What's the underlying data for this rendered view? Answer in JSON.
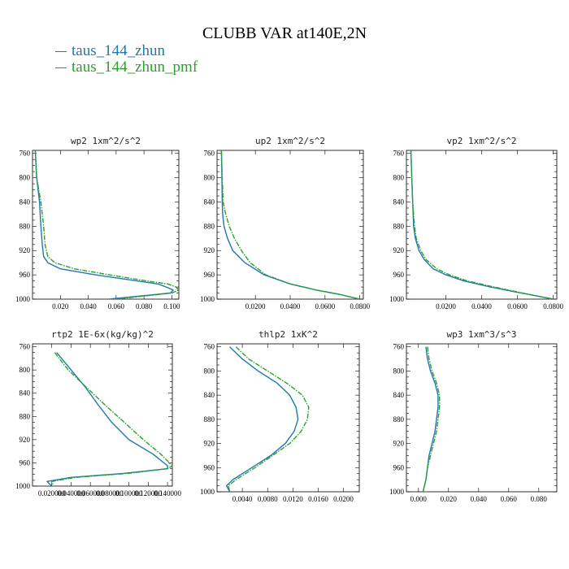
{
  "title": "CLUBB VAR at140E,2N",
  "legend": [
    {
      "name": "taus_144_zhun",
      "color": "#1f77b4"
    },
    {
      "name": "taus_144_zhun_pmf",
      "color": "#2ca02c"
    }
  ],
  "chart_data": [
    {
      "type": "line",
      "title": "wp2  1xm^2/s^2",
      "xlim": [
        0,
        0.105
      ],
      "ylim": [
        1000,
        755
      ],
      "xticks": [
        0.02,
        0.04,
        0.06,
        0.08,
        0.1
      ],
      "xticklabels": [
        "0.020",
        "0.040",
        "0.060",
        "0.080",
        "0.100"
      ],
      "yticks": [
        760,
        800,
        840,
        880,
        920,
        960,
        1000
      ],
      "series": [
        {
          "name": "taus_144_zhun",
          "y": [
            755,
            800,
            840,
            880,
            910,
            930,
            940,
            950,
            960,
            970,
            975,
            980,
            985,
            990,
            1000
          ],
          "x": [
            0.002,
            0.003,
            0.005,
            0.006,
            0.007,
            0.008,
            0.011,
            0.02,
            0.045,
            0.075,
            0.09,
            0.096,
            0.101,
            0.099,
            0.055
          ]
        },
        {
          "name": "taus_144_zhun_pmf",
          "y": [
            755,
            800,
            840,
            880,
            910,
            930,
            940,
            950,
            960,
            970,
            975,
            980,
            985,
            990,
            1000
          ],
          "x": [
            0.002,
            0.003,
            0.006,
            0.008,
            0.009,
            0.011,
            0.016,
            0.03,
            0.055,
            0.082,
            0.097,
            0.103,
            0.105,
            0.1,
            0.06
          ]
        }
      ]
    },
    {
      "type": "line",
      "title": "up2  1xm^2/s^2",
      "xlim": [
        -0.002,
        0.082
      ],
      "ylim": [
        1000,
        755
      ],
      "xticks": [
        0.02,
        0.04,
        0.06,
        0.08
      ],
      "xticklabels": [
        "0.0200",
        "0.0400",
        "0.0600",
        "0.0800"
      ],
      "yticks": [
        760,
        800,
        840,
        880,
        920,
        960,
        1000
      ],
      "series": [
        {
          "name": "taus_144_zhun",
          "y": [
            755,
            800,
            840,
            860,
            880,
            900,
            920,
            940,
            960,
            975,
            985,
            992,
            1000
          ],
          "x": [
            0.0005,
            0.0008,
            0.001,
            0.0012,
            0.002,
            0.004,
            0.007,
            0.014,
            0.025,
            0.04,
            0.055,
            0.068,
            0.08
          ]
        },
        {
          "name": "taus_144_zhun_pmf",
          "y": [
            755,
            800,
            840,
            860,
            880,
            900,
            920,
            940,
            960,
            975,
            985,
            992,
            1000
          ],
          "x": [
            0.0005,
            0.001,
            0.0015,
            0.003,
            0.005,
            0.008,
            0.012,
            0.017,
            0.026,
            0.04,
            0.055,
            0.068,
            0.08
          ]
        }
      ]
    },
    {
      "type": "line",
      "title": "vp2  1xm^2/s^2",
      "xlim": [
        -0.002,
        0.082
      ],
      "ylim": [
        1000,
        755
      ],
      "xticks": [
        0.02,
        0.04,
        0.06,
        0.08
      ],
      "xticklabels": [
        "0.0200",
        "0.0400",
        "0.0600",
        "0.0800"
      ],
      "yticks": [
        760,
        800,
        840,
        880,
        920,
        960,
        1000
      ],
      "series": [
        {
          "name": "taus_144_zhun",
          "y": [
            755,
            800,
            840,
            880,
            900,
            920,
            935,
            950,
            960,
            970,
            980,
            990,
            1000
          ],
          "x": [
            0.0005,
            0.001,
            0.0015,
            0.002,
            0.003,
            0.005,
            0.008,
            0.013,
            0.02,
            0.03,
            0.045,
            0.062,
            0.08
          ]
        },
        {
          "name": "taus_144_zhun_pmf",
          "y": [
            755,
            800,
            840,
            880,
            900,
            920,
            935,
            950,
            960,
            970,
            980,
            990,
            1000
          ],
          "x": [
            0.0005,
            0.001,
            0.0015,
            0.0025,
            0.0035,
            0.006,
            0.009,
            0.015,
            0.022,
            0.032,
            0.047,
            0.063,
            0.08
          ]
        }
      ]
    },
    {
      "type": "line",
      "title": "rtp2  1E-6x(kg/kg)^2",
      "xlim": [
        0,
        0.145
      ],
      "ylim": [
        1000,
        755
      ],
      "xticks": [
        0.02,
        0.04,
        0.06,
        0.08,
        0.1,
        0.12,
        0.14
      ],
      "xticklabels": [
        "0.020000",
        "0.040000",
        "0.060000",
        "0.080000",
        "0.100000",
        "0.120000",
        "0.140000"
      ],
      "yticks": [
        760,
        800,
        840,
        880,
        920,
        960,
        1000
      ],
      "series": [
        {
          "name": "taus_144_zhun",
          "y": [
            770,
            800,
            830,
            860,
            890,
            920,
            945,
            965,
            970,
            978,
            985,
            992,
            1000
          ],
          "x": [
            0.025,
            0.04,
            0.055,
            0.068,
            0.082,
            0.1,
            0.125,
            0.14,
            0.14,
            0.095,
            0.04,
            0.015,
            0.02
          ]
        },
        {
          "name": "taus_144_zhun_pmf",
          "y": [
            770,
            800,
            830,
            860,
            890,
            920,
            945,
            965,
            970,
            978,
            985,
            992,
            1000
          ],
          "x": [
            0.023,
            0.037,
            0.056,
            0.075,
            0.095,
            0.115,
            0.133,
            0.145,
            0.14,
            0.1,
            0.045,
            0.02,
            0.022
          ]
        }
      ]
    },
    {
      "type": "line",
      "title": "thlp2  1xK^2",
      "xlim": [
        0,
        0.0225
      ],
      "ylim": [
        1000,
        755
      ],
      "xticks": [
        0.004,
        0.008,
        0.012,
        0.016,
        0.02
      ],
      "xticklabels": [
        "0.0040",
        "0.0080",
        "0.0120",
        "0.0160",
        "0.0200"
      ],
      "yticks": [
        760,
        800,
        840,
        880,
        920,
        960,
        1000
      ],
      "series": [
        {
          "name": "taus_144_zhun",
          "y": [
            760,
            780,
            800,
            820,
            840,
            860,
            880,
            900,
            920,
            940,
            960,
            980,
            990,
            1000
          ],
          "x": [
            0.002,
            0.004,
            0.0065,
            0.0095,
            0.0115,
            0.0125,
            0.0128,
            0.0122,
            0.0108,
            0.0085,
            0.0055,
            0.0025,
            0.0015,
            0.002
          ]
        },
        {
          "name": "taus_144_zhun_pmf",
          "y": [
            760,
            780,
            800,
            820,
            840,
            860,
            880,
            900,
            920,
            940,
            960,
            980,
            990,
            1000
          ],
          "x": [
            0.003,
            0.005,
            0.008,
            0.011,
            0.0135,
            0.0145,
            0.0143,
            0.0133,
            0.0115,
            0.0088,
            0.006,
            0.003,
            0.0018,
            0.002
          ]
        }
      ]
    },
    {
      "type": "line",
      "title": "wp3  1xm^3/s^3",
      "xlim": [
        -0.008,
        0.092
      ],
      "ylim": [
        1000,
        755
      ],
      "xticks": [
        0,
        0.02,
        0.04,
        0.06,
        0.08
      ],
      "xticklabels": [
        "0.000",
        "0.020",
        "0.040",
        "0.060",
        "0.080"
      ],
      "yticks": [
        760,
        800,
        840,
        880,
        920,
        960,
        1000
      ],
      "series": [
        {
          "name": "taus_144_zhun",
          "y": [
            760,
            780,
            800,
            820,
            840,
            860,
            880,
            900,
            920,
            940,
            960,
            980,
            1000
          ],
          "x": [
            0.005,
            0.006,
            0.008,
            0.011,
            0.013,
            0.013,
            0.012,
            0.011,
            0.009,
            0.007,
            0.006,
            0.005,
            0.003
          ]
        },
        {
          "name": "taus_144_zhun_pmf",
          "y": [
            760,
            780,
            800,
            820,
            840,
            860,
            880,
            900,
            920,
            940,
            960,
            980,
            1000
          ],
          "x": [
            0.006,
            0.007,
            0.009,
            0.012,
            0.014,
            0.014,
            0.013,
            0.012,
            0.01,
            0.008,
            0.006,
            0.005,
            0.003
          ]
        }
      ]
    }
  ]
}
